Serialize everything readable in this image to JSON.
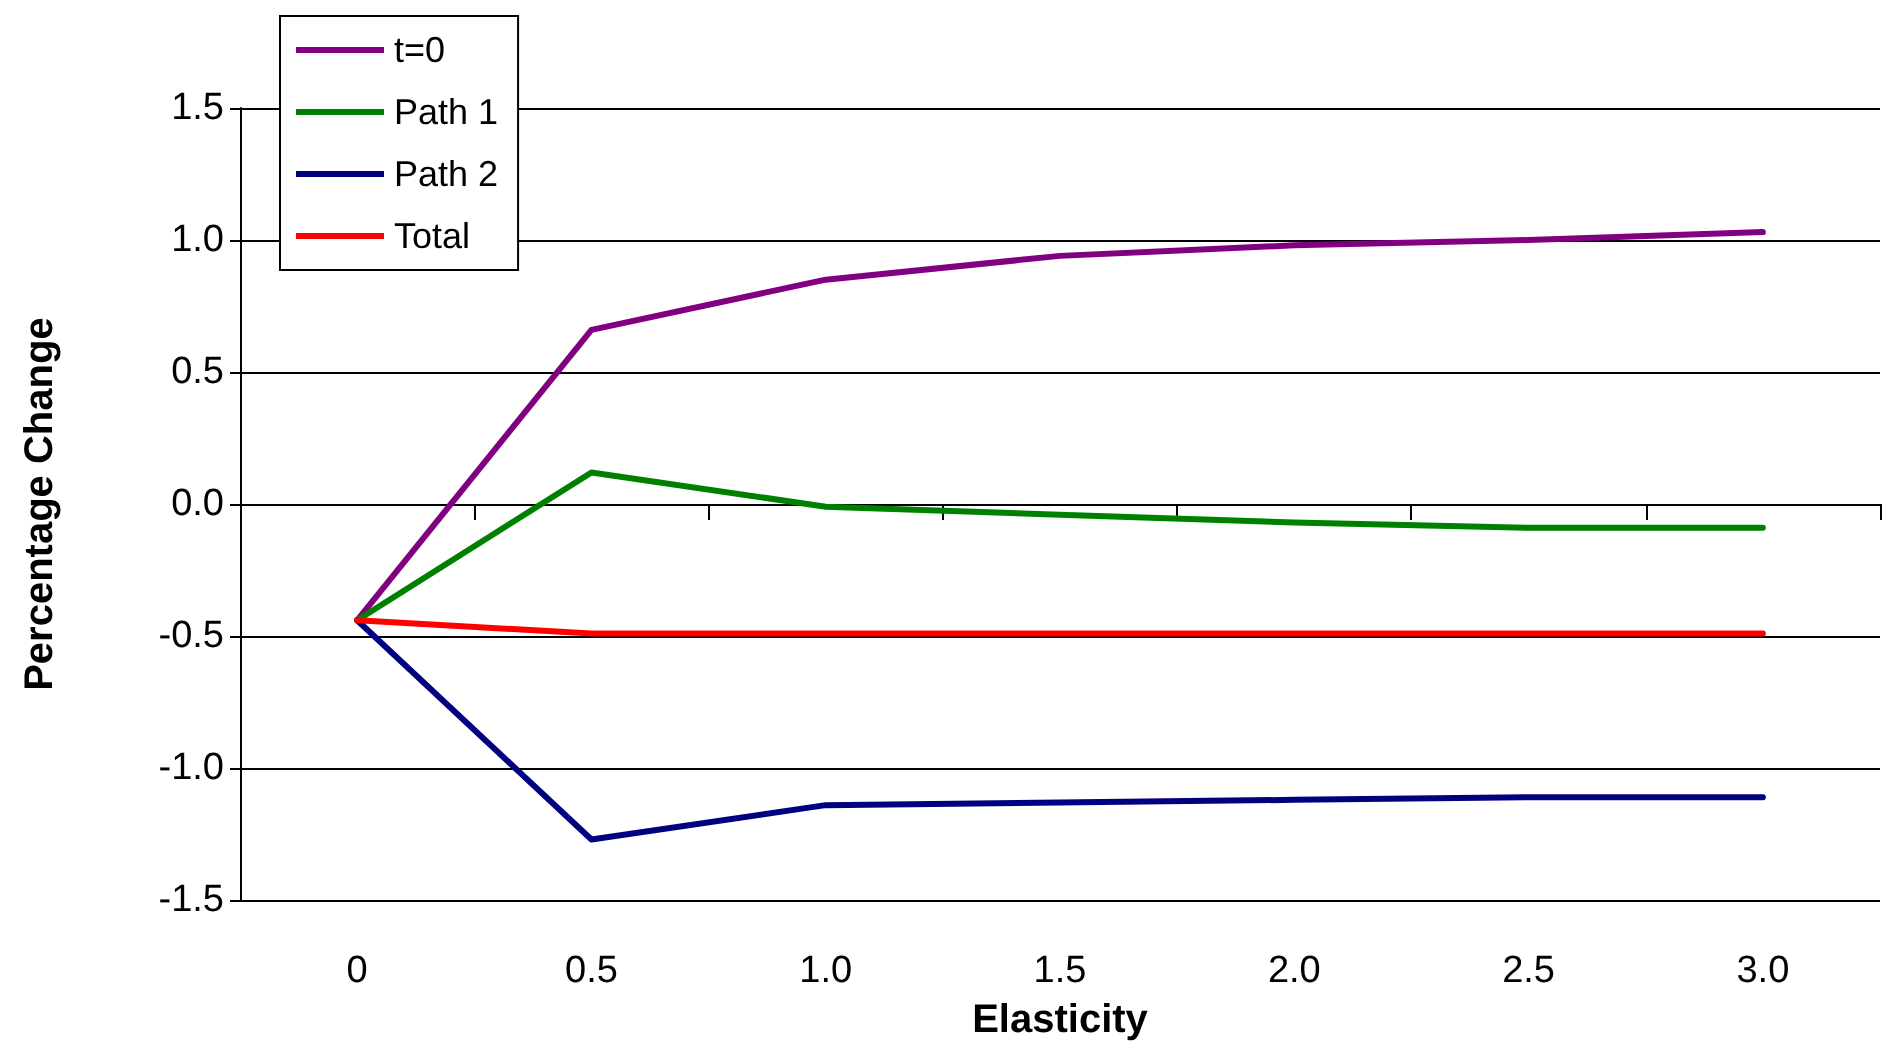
{
  "chart_data": {
    "type": "line",
    "xlabel": "Elasticity",
    "ylabel": "Percentage Change",
    "categories": [
      "0",
      "0.5",
      "1.0",
      "1.5",
      "2.0",
      "2.5",
      "3.0"
    ],
    "series": [
      {
        "name": "t=0",
        "color": "#800080",
        "values": [
          -0.44,
          0.66,
          0.85,
          0.94,
          0.98,
          1.0,
          1.03
        ]
      },
      {
        "name": "Path 1",
        "color": "#008000",
        "values": [
          -0.44,
          0.12,
          -0.01,
          -0.04,
          -0.07,
          -0.09,
          -0.09
        ]
      },
      {
        "name": "Path 2",
        "color": "#000080",
        "values": [
          -0.44,
          -1.27,
          -1.14,
          -1.13,
          -1.12,
          -1.11,
          -1.11
        ]
      },
      {
        "name": "Total",
        "color": "#ff0000",
        "values": [
          -0.44,
          -0.49,
          -0.49,
          -0.49,
          -0.49,
          -0.49,
          -0.49
        ]
      }
    ],
    "ylim": [
      -1.5,
      1.5
    ],
    "yticks": [
      -1.5,
      {
        "value": -1,
        "label": "-1.0"
      },
      -0.5,
      {
        "value": 0,
        "label": "0.0"
      },
      0.5,
      {
        "value": 1,
        "label": "1.0"
      },
      1.5
    ],
    "grid": "y",
    "legend": "top left",
    "marker": "none",
    "line_style": "solid"
  }
}
